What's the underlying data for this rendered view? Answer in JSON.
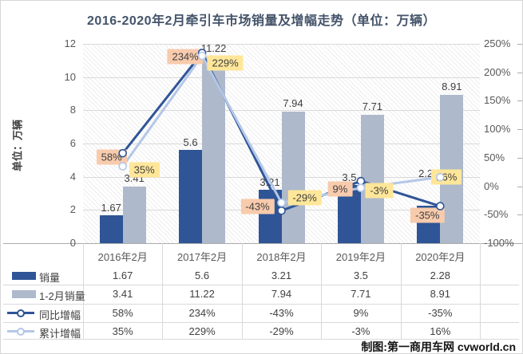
{
  "title": "2016-2020年2月牵引车市场销量及增幅走势（单位：万辆）",
  "y_axis_title": "单位：万辆",
  "credit": "制图:第一商用车网 cvworld.cn",
  "axes": {
    "left_ticks": [
      "12",
      "10",
      "8",
      "6",
      "4",
      "2",
      "0"
    ],
    "right_ticks": [
      "250%",
      "200%",
      "150%",
      "100%",
      "50%",
      "0%",
      "-50%",
      "-100%"
    ]
  },
  "chart_data": {
    "type": "combo-bar-line",
    "title": "2016-2020年2月牵引车市场销量及增幅走势（单位：万辆）",
    "categories": [
      "2016年2月",
      "2017年2月",
      "2018年2月",
      "2019年2月",
      "2020年2月"
    ],
    "series": [
      {
        "name": "销量",
        "chart_type": "bar",
        "axis": "left",
        "values": [
          1.67,
          5.6,
          3.21,
          3.5,
          2.28
        ],
        "value_labels": [
          "1.67",
          "5.6",
          "3.21",
          "3.5",
          "2.28"
        ]
      },
      {
        "name": "1-2月销量",
        "chart_type": "bar",
        "axis": "left",
        "values": [
          3.41,
          11.22,
          7.94,
          7.71,
          8.91
        ],
        "value_labels": [
          "3.41",
          "11.22",
          "7.94",
          "7.71",
          "8.91"
        ]
      },
      {
        "name": "同比增幅",
        "chart_type": "line",
        "axis": "right",
        "values": [
          58,
          234,
          -43,
          9,
          -35
        ],
        "value_labels": [
          "58%",
          "234%",
          "-43%",
          "9%",
          "-35%"
        ]
      },
      {
        "name": "累计增幅",
        "chart_type": "line",
        "axis": "right",
        "values": [
          35,
          229,
          -29,
          -3,
          16
        ],
        "value_labels": [
          "35%",
          "229%",
          "-29%",
          "-3%",
          "16%"
        ]
      }
    ],
    "left_axis": {
      "min": 0,
      "max": 12,
      "step": 2,
      "title": "单位：万辆"
    },
    "right_axis": {
      "min": -100,
      "max": 250,
      "step": 50
    },
    "grid": true,
    "legend_position": "table-left"
  },
  "colors": {
    "bar_sales": "#2F5597",
    "bar_cumulative": "#AEB9CB",
    "line_yoy": "#2F5597",
    "line_cum_growth": "#B4C7E7",
    "label_box_yoy": "#F8CBAD",
    "label_box_cum": "#FFE699",
    "grid": "#D9D9D9",
    "axis_line": "#ABABAB",
    "axis_text": "#595959",
    "data_text": "#404040",
    "title_text": "#44546A"
  }
}
